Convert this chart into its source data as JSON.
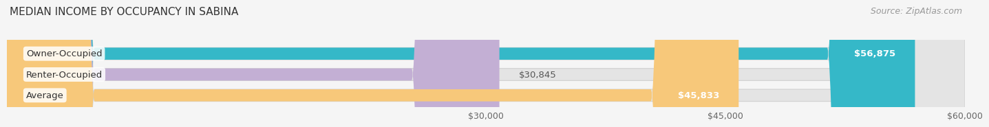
{
  "title": "MEDIAN INCOME BY OCCUPANCY IN SABINA",
  "source": "Source: ZipAtlas.com",
  "categories": [
    "Owner-Occupied",
    "Renter-Occupied",
    "Average"
  ],
  "values": [
    56875,
    30845,
    45833
  ],
  "labels": [
    "$56,875",
    "$30,845",
    "$45,833"
  ],
  "bar_colors": [
    "#35b8c8",
    "#c3afd4",
    "#f7c87a"
  ],
  "background_color": "#f5f5f5",
  "bar_bg_color": "#e4e4e4",
  "xmin": 0,
  "xmax": 60000,
  "xticks": [
    30000,
    45000,
    60000
  ],
  "xtick_labels": [
    "$30,000",
    "$45,000",
    "$60,000"
  ],
  "bar_height": 0.58,
  "label_fontsize": 9.5,
  "title_fontsize": 11,
  "source_fontsize": 9,
  "value_label_threshold": 0.75
}
